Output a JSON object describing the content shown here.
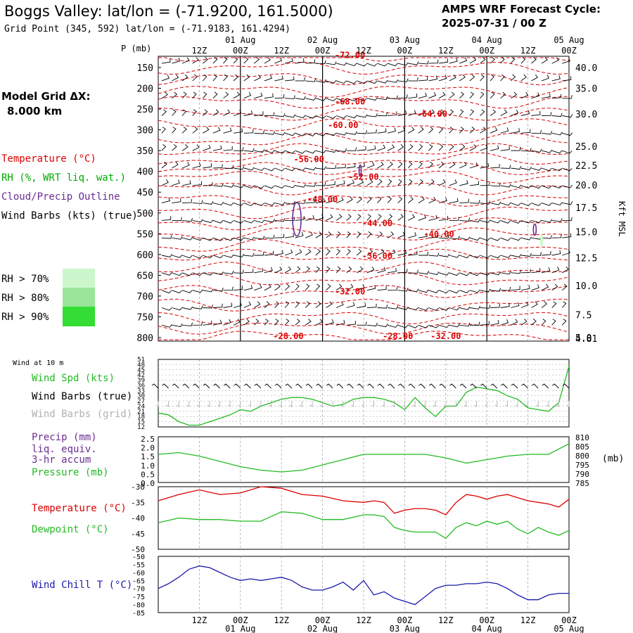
{
  "header": {
    "title": "Boggs Valley:  lat/lon = (-71.9200, 161.5000)",
    "subtitle": "Grid Point (345, 592) lat/lon = (-71.9183, 161.4294)",
    "cycle_label": "AMPS WRF Forecast Cycle:",
    "cycle_value": "2025-07-31 / 00  Z"
  },
  "model_grid": {
    "label": "Model Grid ΔX:",
    "value": "8.000 km"
  },
  "legends": {
    "temperature": "Temperature (°C)",
    "rh": "RH (%, WRT liq. wat.)",
    "cloud": "Cloud/Precip Outline",
    "wind": "Wind Barbs (kts) (true)",
    "rh70": "RH > 70%",
    "rh80": "RH > 80%",
    "rh90": "RH > 90%"
  },
  "colors": {
    "temp": "#dd0000",
    "rh": "#00aa00",
    "cloud": "#6a2c91",
    "wind": "#000000",
    "windgrid": "#b0b0b0",
    "spd": "#22bb22",
    "dew": "#22bb22",
    "chill": "#1a1aaa",
    "rh70": "#ccf7cc",
    "rh80": "#99e699",
    "rh90": "#33dd33",
    "grid": "#999999"
  },
  "time_axis": {
    "hours": [
      "12Z",
      "00Z",
      "12Z",
      "00Z",
      "12Z",
      "00Z",
      "12Z",
      "00Z",
      "12Z",
      "00Z"
    ],
    "days": [
      "01 Aug",
      "02 Aug",
      "03 Aug",
      "04 Aug",
      "05 Aug"
    ]
  },
  "chart_data": [
    {
      "type": "heatmap",
      "name": "cross-section",
      "y_label": "P (mb)",
      "right_label": "Kft MSL",
      "pressure_ticks": [
        "150",
        "200",
        "250",
        "300",
        "350",
        "400",
        "450",
        "500",
        "550",
        "600",
        "650",
        "700",
        "750",
        "800"
      ],
      "kft_ticks": [
        {
          "p": 150,
          "label": "40.0"
        },
        {
          "p": 200,
          "label": "35.0"
        },
        {
          "p": 262,
          "label": "30.0"
        },
        {
          "p": 340,
          "label": "25.0"
        },
        {
          "p": 385,
          "label": "22.5"
        },
        {
          "p": 433,
          "label": "20.0"
        },
        {
          "p": 487,
          "label": "17.5"
        },
        {
          "p": 545,
          "label": "15.0"
        },
        {
          "p": 608,
          "label": "12.5"
        },
        {
          "p": 675,
          "label": "10.0"
        },
        {
          "p": 745,
          "label": "7.5"
        },
        {
          "p": 800,
          "label": "5.0"
        },
        {
          "p": 802,
          "label": "4.81"
        }
      ],
      "temp_labels": [
        {
          "t": 28,
          "p": 120,
          "label": "-72.00"
        },
        {
          "t": 28,
          "p": 232,
          "label": "-68.00"
        },
        {
          "t": 40,
          "p": 262,
          "label": "-64.00"
        },
        {
          "t": 27,
          "p": 289,
          "label": "-60.00"
        },
        {
          "t": 22,
          "p": 371,
          "label": "-56.00"
        },
        {
          "t": 30,
          "p": 413,
          "label": "-52.00"
        },
        {
          "t": 24,
          "p": 467,
          "label": "-48.00"
        },
        {
          "t": 32,
          "p": 525,
          "label": "-44.00"
        },
        {
          "t": 41,
          "p": 551,
          "label": "-40.00"
        },
        {
          "t": 32,
          "p": 604,
          "label": "-36.00"
        },
        {
          "t": 28,
          "p": 689,
          "label": "-32.00"
        },
        {
          "t": 19,
          "p": 797,
          "label": "-28.00"
        },
        {
          "t": 35,
          "p": 797,
          "label": "-28.00"
        },
        {
          "t": 42,
          "p": 797,
          "label": "-32.00"
        }
      ]
    },
    {
      "type": "line",
      "name": "wind-10m",
      "panel_label": "Wind at 10 m",
      "labels": {
        "spd": "Wind Spd (kts)",
        "barbs_true": "Wind Barbs (true)",
        "barbs_grid": "Wind Barbs (grid)"
      },
      "y_ticks": [
        51,
        48,
        45,
        42,
        39,
        36,
        33,
        30,
        27,
        24,
        21,
        18,
        15,
        12
      ],
      "ylim": [
        12,
        51
      ],
      "x": [
        0,
        3,
        6,
        9,
        12,
        15,
        18,
        21,
        24,
        27,
        30,
        33,
        36,
        39,
        42,
        45,
        48,
        51,
        54,
        57,
        60,
        63,
        66,
        69,
        72,
        75,
        78,
        81,
        84,
        87,
        90,
        93,
        96,
        99,
        102,
        105,
        108,
        111,
        114,
        117,
        120
      ],
      "values": [
        20,
        19,
        15,
        13,
        13,
        15,
        17,
        19,
        22,
        21,
        24,
        26,
        28,
        29,
        29,
        28,
        26,
        24,
        25,
        28,
        29,
        29,
        28,
        26,
        22,
        29,
        23,
        18,
        24,
        24,
        32,
        35,
        34,
        33,
        30,
        28,
        23,
        22,
        21,
        26,
        47
      ]
    },
    {
      "type": "line",
      "name": "precip-pressure",
      "labels": {
        "precip": "Precip (mm)",
        "liq": "liq. equiv.",
        "accum": "3-hr accum",
        "pressure": "Pressure (mb)"
      },
      "left_ticks": [
        "2.5",
        "2.0",
        "1.5",
        "1.0",
        "0.5",
        "0.0"
      ],
      "right_ticks": [
        "810",
        "805",
        "800",
        "795",
        "790",
        "785"
      ],
      "right_unit": "(mb)",
      "ylim": [
        785,
        811
      ],
      "x": [
        0,
        6,
        12,
        18,
        24,
        30,
        36,
        42,
        48,
        54,
        60,
        66,
        72,
        78,
        84,
        90,
        96,
        102,
        108,
        114,
        120
      ],
      "values": [
        801,
        802,
        800,
        797,
        794,
        792,
        791,
        792,
        795,
        798,
        801,
        801,
        801,
        801,
        799,
        796,
        798,
        800,
        801,
        801,
        807
      ]
    },
    {
      "type": "line",
      "name": "temperature-dewpoint",
      "labels": {
        "temp": "Temperature (°C)",
        "dew": "Dewpoint (°C)"
      },
      "y_ticks": [
        -30,
        -35,
        -40,
        -45,
        -50
      ],
      "ylim": [
        -50,
        -30
      ],
      "x": [
        0,
        6,
        12,
        18,
        24,
        30,
        36,
        42,
        48,
        54,
        60,
        63,
        66,
        69,
        72,
        75,
        78,
        81,
        84,
        87,
        90,
        93,
        96,
        99,
        102,
        105,
        108,
        111,
        114,
        117,
        120
      ],
      "series": [
        {
          "name": "Temperature",
          "values": [
            -34.5,
            -32.5,
            -31,
            -32.5,
            -32,
            -30,
            -30.5,
            -32.5,
            -33,
            -34.5,
            -35,
            -34.5,
            -35,
            -38.5,
            -37.5,
            -37,
            -37,
            -37.5,
            -39,
            -35,
            -32.5,
            -33,
            -34,
            -33,
            -32.5,
            -33.5,
            -34.5,
            -35,
            -35.5,
            -36.5,
            -34
          ]
        },
        {
          "name": "Dewpoint",
          "values": [
            -41.5,
            -40,
            -40.5,
            -40.5,
            -41,
            -41,
            -38,
            -38.5,
            -40.5,
            -40.5,
            -39,
            -39,
            -39.5,
            -43,
            -44,
            -44.5,
            -44.5,
            -44.5,
            -46.5,
            -43,
            -41.5,
            -42.5,
            -41,
            -42,
            -41,
            -43.5,
            -45,
            -43,
            -44.5,
            -45.5,
            -44
          ]
        }
      ]
    },
    {
      "type": "line",
      "name": "wind-chill",
      "labels": {
        "chill": "Wind Chill T (°C)"
      },
      "y_ticks": [
        -50,
        -55,
        -60,
        -65,
        -70,
        -75,
        -80,
        -85
      ],
      "ylim": [
        -85,
        -50
      ],
      "x": [
        0,
        3,
        6,
        9,
        12,
        15,
        18,
        21,
        24,
        27,
        30,
        33,
        36,
        39,
        42,
        45,
        48,
        51,
        54,
        57,
        60,
        63,
        66,
        69,
        72,
        75,
        78,
        81,
        84,
        87,
        90,
        93,
        96,
        99,
        102,
        105,
        108,
        111,
        114,
        117,
        120
      ],
      "values": [
        -70,
        -67,
        -63,
        -58,
        -56,
        -57,
        -60,
        -63,
        -65,
        -64,
        -65,
        -64,
        -63,
        -65,
        -69,
        -71,
        -71,
        -69,
        -66,
        -71,
        -65,
        -74,
        -72,
        -76,
        -78,
        -80,
        -75,
        -70,
        -68,
        -68,
        -67,
        -67,
        -66,
        -67,
        -70,
        -74,
        -77,
        -77,
        -74,
        -73,
        -73
      ]
    }
  ]
}
